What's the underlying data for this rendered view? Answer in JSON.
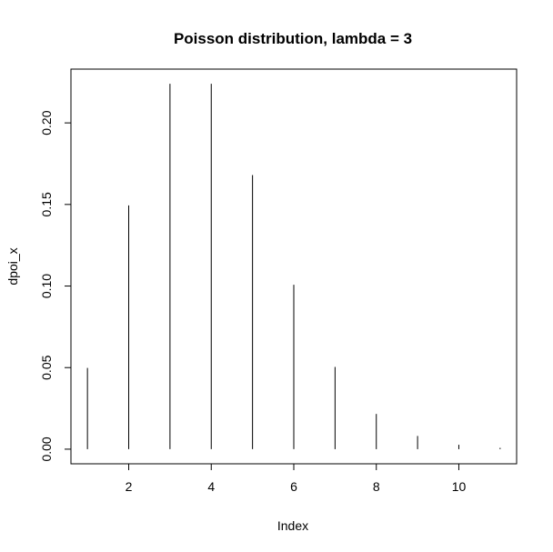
{
  "chart_data": {
    "type": "bar",
    "style": "histogram-lines",
    "title": "Poisson distribution, lambda = 3",
    "xlabel": "Index",
    "ylabel": "dpoi_x",
    "x": [
      1,
      2,
      3,
      4,
      5,
      6,
      7,
      8,
      9,
      10,
      11
    ],
    "values": [
      0.0498,
      0.1494,
      0.224,
      0.224,
      0.168,
      0.1008,
      0.0504,
      0.0216,
      0.0081,
      0.0027,
      0.0008
    ],
    "xlim": [
      0.6,
      11.4
    ],
    "ylim": [
      -0.00896,
      0.23296
    ],
    "xticks": [
      2,
      4,
      6,
      8,
      10
    ],
    "xtick_labels": [
      "2",
      "4",
      "6",
      "8",
      "10"
    ],
    "yticks": [
      0.0,
      0.05,
      0.1,
      0.15,
      0.2
    ],
    "ytick_labels": [
      "0.00",
      "0.05",
      "0.10",
      "0.15",
      "0.20"
    ],
    "grid": false,
    "legend": "none",
    "line_color": "#000000"
  }
}
